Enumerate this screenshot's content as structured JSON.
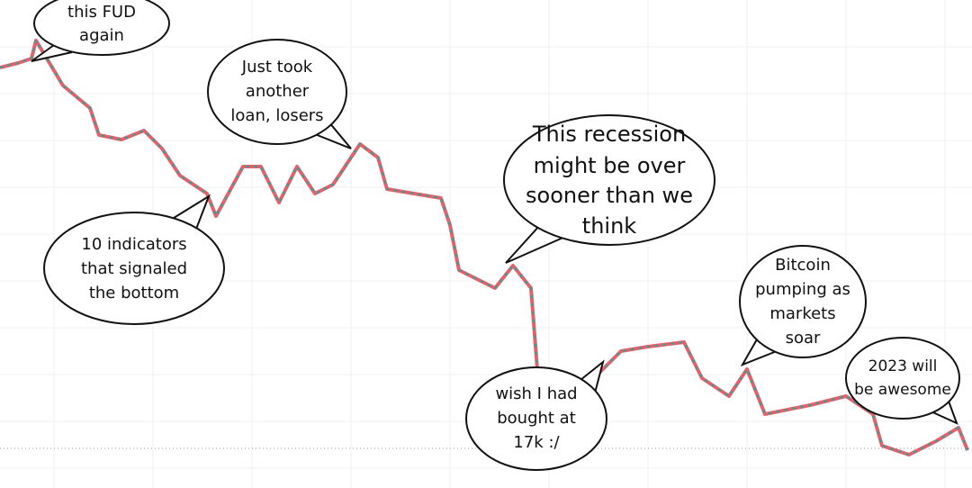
{
  "bubbles": [
    {
      "lines": [
        "this FUD",
        "again"
      ]
    },
    {
      "lines": [
        "Just took",
        "another",
        "loan, losers"
      ]
    },
    {
      "lines": [
        "This recession",
        "might be over",
        "sooner than we",
        "think"
      ]
    },
    {
      "lines": [
        "10 indicators",
        "that signaled",
        "the bottom"
      ]
    },
    {
      "lines": [
        "wish I had",
        "bought at",
        "17k :/"
      ]
    },
    {
      "lines": [
        "Bitcoin",
        "pumping as",
        "markets",
        "soar"
      ]
    },
    {
      "lines": [
        "2023 will",
        "be awesome"
      ]
    }
  ]
}
